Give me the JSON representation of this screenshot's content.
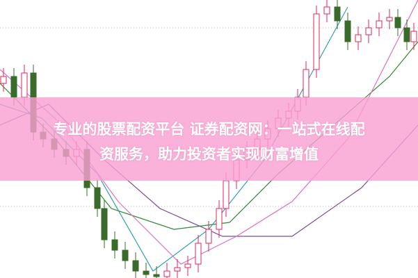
{
  "banner": {
    "line1": "专业的股票配资平台 证券配资网：一站式在线配",
    "line2": "资服务，助力投资者实现财富增值",
    "background_color": "#f9a8d6",
    "text_color": "#ffffff"
  },
  "chart_colors": {
    "up_candle": "#e0245e",
    "down_candle": "#3a6b2a",
    "ma_green": "#2e8b2e",
    "ma_teal": "#2aa0b8",
    "ma_purple": "#7a4a9a",
    "ma_pink": "#e070c0"
  }
}
